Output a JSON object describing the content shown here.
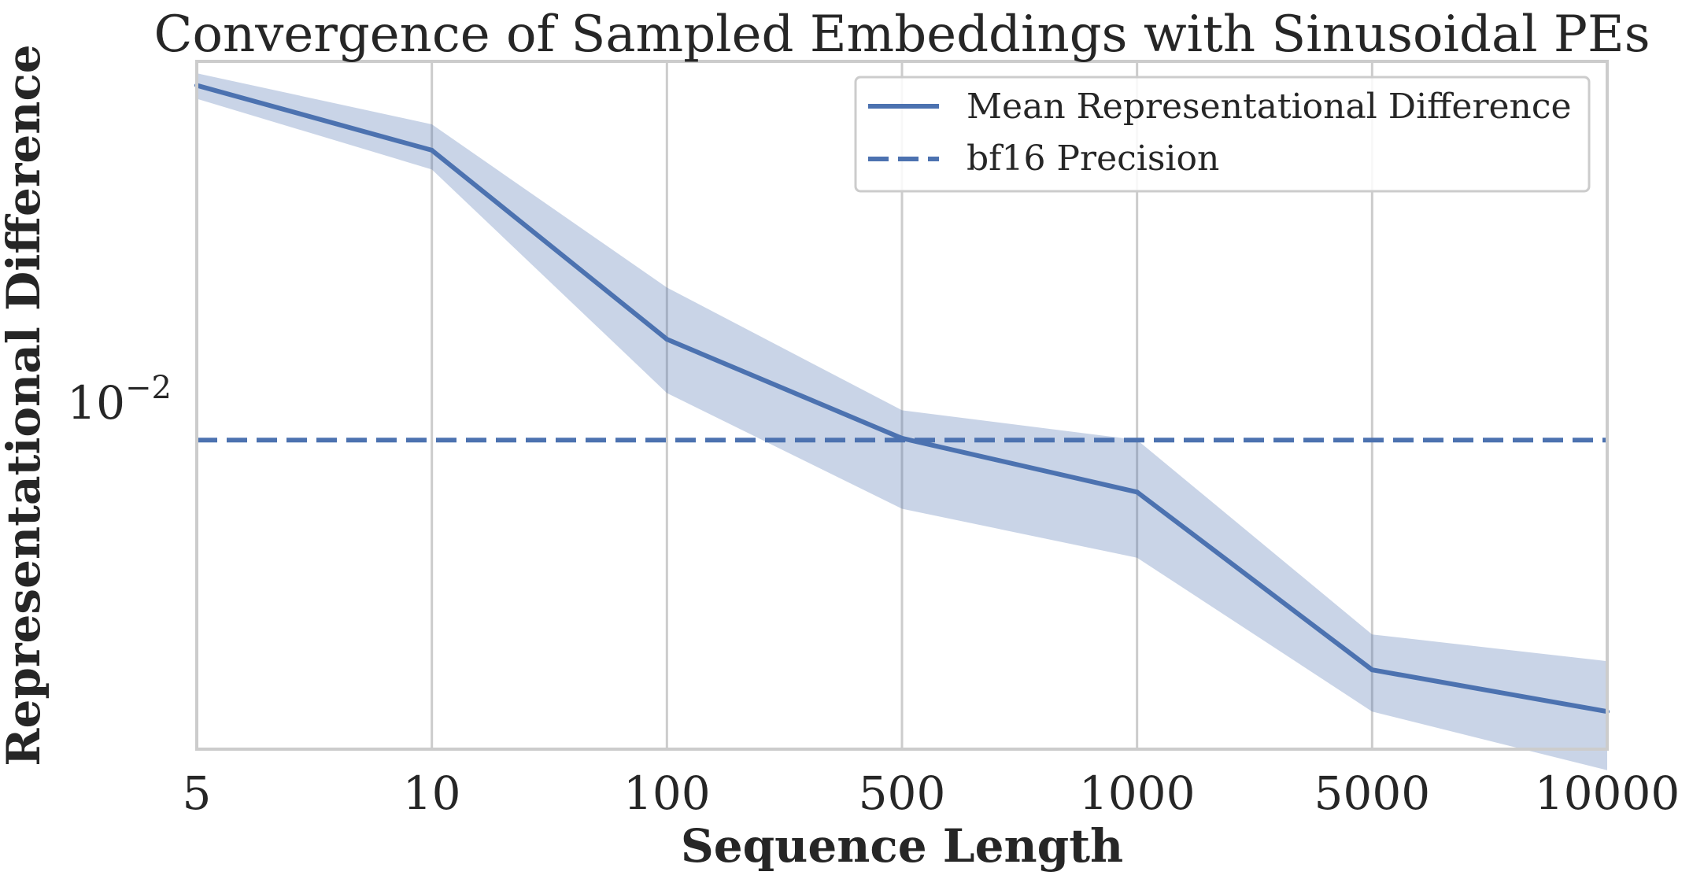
{
  "chart_data": {
    "type": "line",
    "title": "Convergence of Sampled Embeddings with Sinusoidal PEs",
    "xlabel": "Sequence Length",
    "ylabel": "Representational Difference",
    "x_scale": "categorical",
    "y_scale": "log",
    "categories": [
      "5",
      "10",
      "100",
      "500",
      "1000",
      "5000",
      "10000"
    ],
    "y_tick_labels": [
      {
        "value": 0.01,
        "base": "10",
        "exponent": "−2"
      }
    ],
    "ylim": [
      0.00176,
      0.0485
    ],
    "grid": "vertical",
    "legend_position": "top-right",
    "series": [
      {
        "name": "Mean Representational Difference",
        "style": "solid",
        "color": "#4c72b0",
        "values": [
          0.0432,
          0.0316,
          0.0127,
          0.00788,
          0.00608,
          0.00258,
          0.00211
        ],
        "band_upper": [
          0.0458,
          0.0358,
          0.0163,
          0.00902,
          0.00782,
          0.00306,
          0.00269
        ],
        "band_lower": [
          0.0405,
          0.0288,
          0.0098,
          0.00561,
          0.00443,
          0.00211,
          0.00159
        ]
      },
      {
        "name": "bf16 Precision",
        "style": "dashed",
        "color": "#4c72b0",
        "constant": 0.0078125
      }
    ]
  }
}
